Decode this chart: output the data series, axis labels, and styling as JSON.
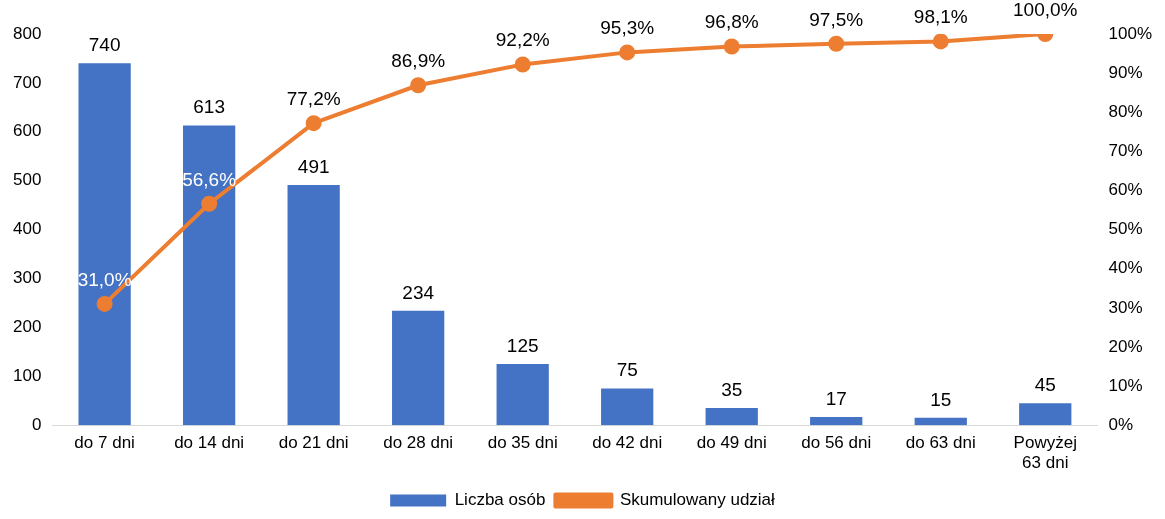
{
  "chart_data": {
    "type": "bar",
    "categories": [
      "do 7 dni",
      "do 14 dni",
      "do 21 dni",
      "do 28 dni",
      "do 35 dni",
      "do 42 dni",
      "do 49 dni",
      "do 56 dni",
      "do 63 dni",
      "Powyżej\n63 dni"
    ],
    "series": [
      {
        "name": "Liczba osób",
        "color": "#4472c4",
        "values": [
          740,
          613,
          491,
          234,
          125,
          75,
          35,
          17,
          15,
          45
        ],
        "value_labels": [
          "740",
          "613",
          "491",
          "234",
          "125",
          "75",
          "35",
          "17",
          "15",
          "45"
        ]
      },
      {
        "name": "Skumulowany udział",
        "type": "line",
        "axis": "y2",
        "color": "#ed7d31",
        "values": [
          31.0,
          56.6,
          77.2,
          86.9,
          92.2,
          95.3,
          96.8,
          97.5,
          98.1,
          100.0
        ],
        "value_labels": [
          "31,0%",
          "56,6%",
          "77,2%",
          "86,9%",
          "92,2%",
          "95,3%",
          "96,8%",
          "97,5%",
          "98,1%",
          "100,0%"
        ]
      }
    ],
    "ylim": [
      0,
      800
    ],
    "yticks": [
      0,
      100,
      200,
      300,
      400,
      500,
      600,
      700,
      800
    ],
    "y2lim": [
      0,
      100
    ],
    "y2ticks": [
      {
        "value": 0,
        "label": "0%"
      },
      {
        "value": 10,
        "label": "10%"
      },
      {
        "value": 20,
        "label": "20%"
      },
      {
        "value": 30,
        "label": "30%"
      },
      {
        "value": 40,
        "label": "40%"
      },
      {
        "value": 50,
        "label": "50%"
      },
      {
        "value": 60,
        "label": "60%"
      },
      {
        "value": 70,
        "label": "70%"
      },
      {
        "value": 80,
        "label": "80%"
      },
      {
        "value": 90,
        "label": "90%"
      },
      {
        "value": 100,
        "label": "100%"
      }
    ],
    "grid": false,
    "legend": "bottom",
    "marker": "circle",
    "line_style": "solid"
  }
}
